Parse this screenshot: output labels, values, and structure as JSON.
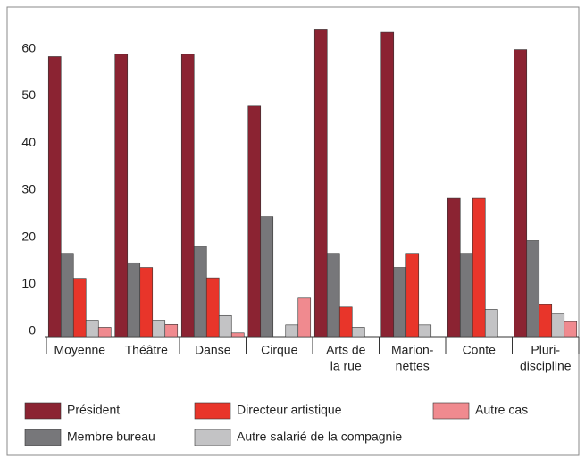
{
  "chart_data": {
    "type": "bar",
    "categories": [
      [
        "Moyenne"
      ],
      [
        "Théâtre"
      ],
      [
        "Danse"
      ],
      [
        "Cirque"
      ],
      [
        "Arts de",
        "la rue"
      ],
      [
        "Marion-",
        "nettes"
      ],
      [
        "Conte"
      ],
      [
        "Pluri-",
        "discipline"
      ]
    ],
    "series": [
      {
        "name": "Président",
        "color": "#8b2332",
        "values": [
          59.5,
          60,
          60,
          49,
          65.2,
          64.7,
          29.4,
          61
        ]
      },
      {
        "name": "Membre bureau",
        "color": "#77777a",
        "values": [
          17.7,
          15.7,
          19.2,
          25.5,
          17.7,
          14.7,
          17.7,
          20.4
        ]
      },
      {
        "name": "Directeur artistique",
        "color": "#e8352a",
        "values": [
          12.4,
          14.7,
          12.5,
          0,
          6.3,
          17.7,
          29.4,
          6.8
        ]
      },
      {
        "name": "Autre salarié de la compagnie",
        "color": "#c3c3c5",
        "values": [
          3.5,
          3.5,
          4.5,
          2.5,
          2,
          2.5,
          5.8,
          4.8
        ]
      },
      {
        "name": "Autre cas",
        "color": "#f08a8f",
        "values": [
          2,
          2.6,
          0.8,
          8.2,
          0,
          0,
          0,
          3.2
        ]
      }
    ],
    "ylim": [
      0,
      65
    ],
    "yticks": [
      0,
      10,
      20,
      30,
      40,
      50,
      60
    ],
    "grid": false
  }
}
